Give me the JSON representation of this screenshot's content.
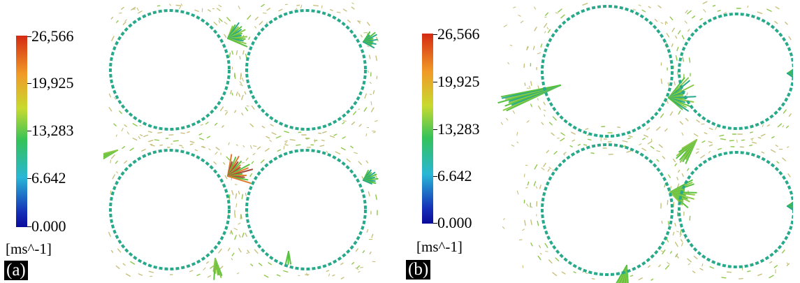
{
  "legend": {
    "ticks": [
      "26,566",
      "19,925",
      "13,283",
      "6.642",
      "0.000"
    ],
    "unit": "[ms^-1]",
    "colors": [
      "#d42a12",
      "#f19a27",
      "#c8da2f",
      "#33c25a",
      "#29b7d6",
      "#1530b8",
      "#0b0a9a"
    ]
  },
  "panels": [
    {
      "label": "(a)"
    },
    {
      "label": "(b)"
    }
  ],
  "palette": {
    "ring": "#27a98a",
    "vector_low": "#c7c07c",
    "vector_mid": "#8ec84b",
    "vector_high": "#e07a2e",
    "vector_peak": "#a34a3a",
    "vector_fast": "#58c23e"
  }
}
